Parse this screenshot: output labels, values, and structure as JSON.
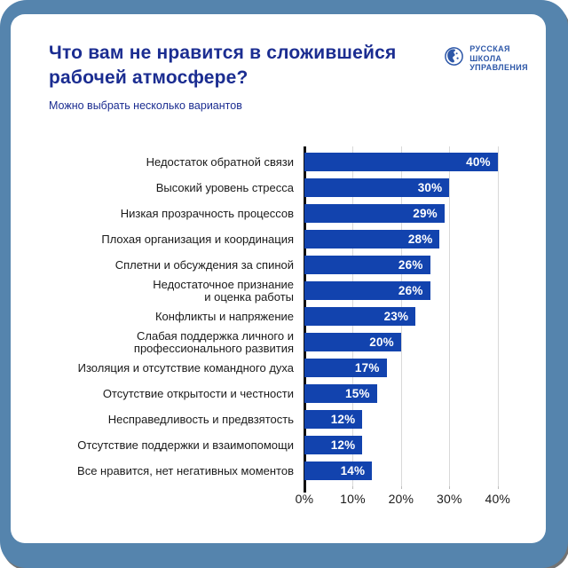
{
  "frame": {
    "border_color": "#5584ad",
    "card_background": "#ffffff"
  },
  "header": {
    "title": "Что вам не нравится в сложившейся рабочей атмосфере?",
    "title_line1": "Что вам не нравится в сложившейся",
    "title_line2": "рабочей атмосфере?",
    "subtitle": "Можно выбрать несколько вариантов",
    "title_color": "#1b2d91"
  },
  "logo": {
    "text": "РУССКАЯ\nШКОЛА\nУПРАВЛЕНИЯ",
    "color": "#2d57a8",
    "icon": "globe-face-circle-icon"
  },
  "chart_data": {
    "type": "bar",
    "orientation": "horizontal",
    "title": "Что вам не нравится в сложившейся рабочей атмосфере?",
    "subtitle": "Можно выбрать несколько вариантов",
    "categories": [
      "Недостаток обратной связи",
      "Высокий уровень стресса",
      "Низкая прозрачность процессов",
      "Плохая организация и координация",
      "Сплетни и обсуждения за спиной",
      "Недостаточное признание\nи оценка работы",
      "Конфликты и напряжение",
      "Слабая поддержка личного и\nпрофессионального развития",
      "Изоляция и отсутствие командного духа",
      "Отсутствие открытости и честности",
      "Несправедливость и предвзятость",
      "Отсутствие поддержки и взаимопомощи",
      "Все нравится, нет негативных моментов"
    ],
    "values": [
      40,
      30,
      29,
      28,
      26,
      26,
      23,
      20,
      17,
      15,
      12,
      12,
      14
    ],
    "value_labels": [
      "40%",
      "30%",
      "29%",
      "28%",
      "26%",
      "26%",
      "23%",
      "20%",
      "17%",
      "15%",
      "12%",
      "12%",
      "14%"
    ],
    "xticks": [
      0,
      10,
      20,
      30,
      40
    ],
    "xtick_labels": [
      "0%",
      "10%",
      "20%",
      "30%",
      "40%"
    ],
    "xlim": [
      0,
      45
    ],
    "xlabel": "",
    "ylabel": "",
    "bar_color": "#1243ae",
    "value_label_color": "#ffffff",
    "grid": true,
    "gridline_color": "#d9d9d9",
    "legend": false
  }
}
